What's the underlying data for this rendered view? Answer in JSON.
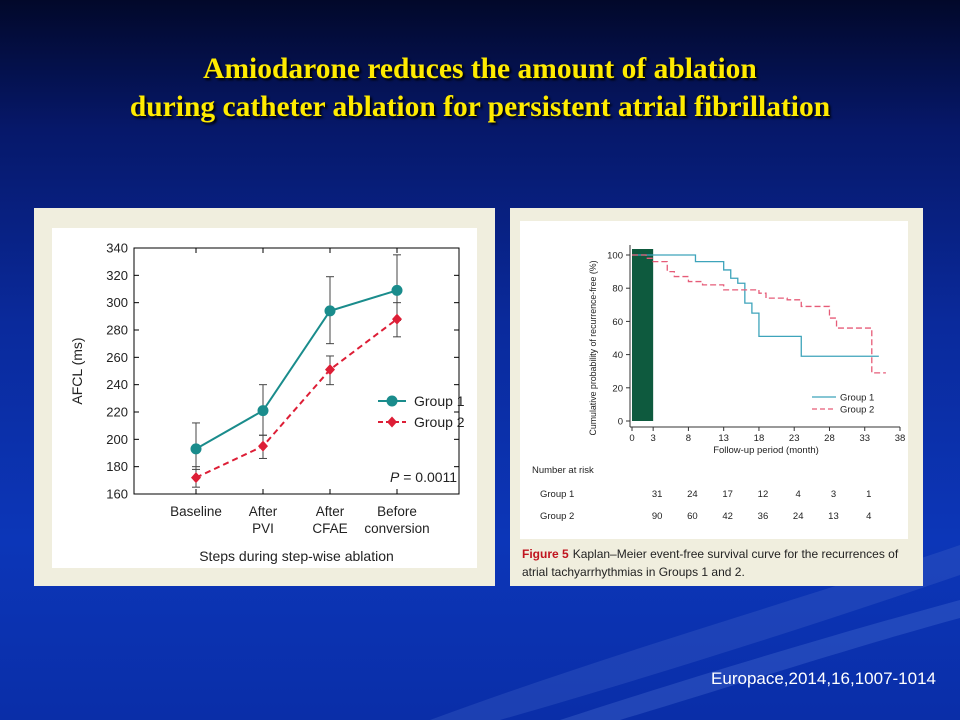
{
  "slide": {
    "title_line1": "Amiodarone reduces the amount of ablation",
    "title_line2": "during catheter ablation for persistent atrial fibrillation",
    "citation": "Europace,2014,16,1007-1014",
    "colors": {
      "title": "#ffeb00",
      "background": "#0a2a9c"
    }
  },
  "figure5": {
    "label": "Figure 5",
    "caption": "Kaplan–Meier event-free survival curve for the recurrences of atrial tachyarrhythmias in Groups 1 and 2."
  },
  "chart_data": [
    {
      "type": "line",
      "title": "",
      "xlabel": "Steps during step-wise ablation",
      "ylabel": "AFCL (ms)",
      "ylim": [
        160,
        340
      ],
      "yticks": [
        "160",
        "180",
        "200",
        "220",
        "240",
        "260",
        "280",
        "300",
        "320",
        "340"
      ],
      "categories": [
        [
          "Baseline"
        ],
        [
          "After",
          "PVI"
        ],
        [
          "After",
          "CFAE"
        ],
        [
          "Before",
          "conversion"
        ]
      ],
      "legend_position": "right-middle",
      "annotation": "P = 0.0011",
      "annotation_parts": {
        "var": "P",
        "rest": " = 0.0011"
      },
      "series": [
        {
          "name": "Group 1",
          "color": "#1a8c8c",
          "marker": "circle",
          "style": "solid",
          "values": [
            193,
            221,
            294,
            309
          ],
          "err_upper": [
            212,
            240,
            319,
            335
          ],
          "err_lower": [
            178,
            203,
            270,
            287
          ]
        },
        {
          "name": "Group 2",
          "color": "#dd1e36",
          "marker": "diamond",
          "style": "dashed",
          "values": [
            172,
            195,
            251,
            288
          ],
          "err_upper": [
            180,
            203,
            261,
            300
          ],
          "err_lower": [
            165,
            186,
            240,
            275
          ]
        }
      ]
    },
    {
      "type": "line",
      "title": "",
      "xlabel": "Follow-up period (month)",
      "ylabel": "Cumulative probability of recurrence-free (%)",
      "xlim": [
        0,
        38
      ],
      "ylim": [
        0,
        100
      ],
      "xticks": [
        "0",
        "3",
        "8",
        "13",
        "18",
        "23",
        "28",
        "33",
        "38"
      ],
      "yticks": [
        "0",
        "20",
        "40",
        "60",
        "80",
        "100"
      ],
      "blanking_period": [
        0,
        3
      ],
      "legend_position": "bottom-right",
      "series": [
        {
          "name": "Group 1",
          "color": "#3ea4bb",
          "style": "solid",
          "steps": [
            [
              0,
              100
            ],
            [
              7,
              100
            ],
            [
              9,
              96
            ],
            [
              12,
              96
            ],
            [
              13,
              91
            ],
            [
              14,
              86
            ],
            [
              15,
              83
            ],
            [
              16,
              71
            ],
            [
              17,
              65
            ],
            [
              18,
              51
            ],
            [
              24,
              51
            ],
            [
              24,
              39
            ],
            [
              35,
              39
            ]
          ]
        },
        {
          "name": "Group 2",
          "color": "#e65c78",
          "style": "dashed",
          "steps": [
            [
              0,
              100
            ],
            [
              2,
              98
            ],
            [
              3,
              96
            ],
            [
              5,
              90
            ],
            [
              6,
              87
            ],
            [
              8,
              84
            ],
            [
              10,
              82
            ],
            [
              13,
              79
            ],
            [
              18,
              77
            ],
            [
              19,
              74
            ],
            [
              22,
              73
            ],
            [
              24,
              69
            ],
            [
              27,
              69
            ],
            [
              28,
              62
            ],
            [
              29,
              56
            ],
            [
              34,
              55
            ],
            [
              34,
              29
            ],
            [
              36,
              29
            ]
          ]
        }
      ],
      "risk_table": {
        "header": "Number at risk",
        "columns": [
          "3",
          "8",
          "13",
          "18",
          "23",
          "28",
          "33"
        ],
        "rows": [
          {
            "label": "Group 1",
            "values": [
              "31",
              "24",
              "17",
              "12",
              "4",
              "3",
              "1"
            ]
          },
          {
            "label": "Group 2",
            "values": [
              "90",
              "60",
              "42",
              "36",
              "24",
              "13",
              "4"
            ]
          }
        ]
      }
    }
  ]
}
